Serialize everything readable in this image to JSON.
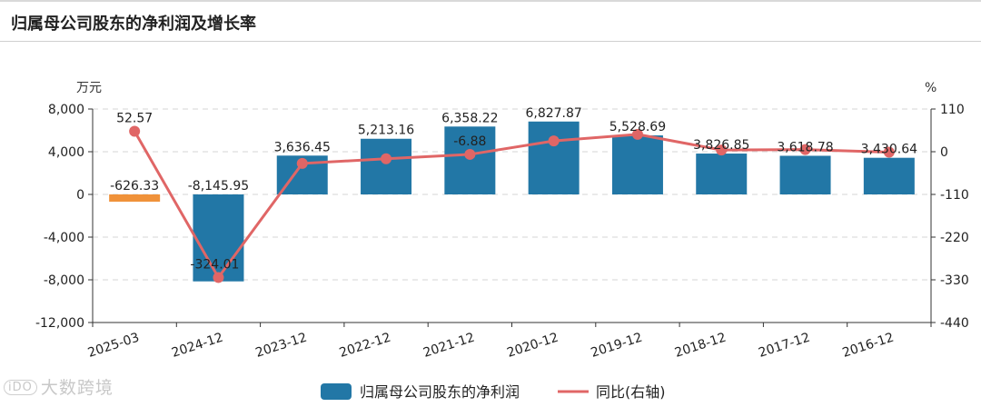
{
  "header": {
    "title": "归属母公司股东的净利润及增长率"
  },
  "watermark": {
    "text": "大数跨境",
    "logo": "iDO"
  },
  "chart_data": {
    "type": "bar",
    "categories": [
      "2025-03",
      "2024-12",
      "2023-12",
      "2022-12",
      "2021-12",
      "2020-12",
      "2019-12",
      "2018-12",
      "2017-12",
      "2016-12"
    ],
    "series": [
      {
        "name": "归属母公司股东的净利润",
        "type": "bar",
        "axis": "left",
        "values": [
          -626.33,
          -8145.95,
          3636.45,
          5213.16,
          6358.22,
          6827.87,
          5528.69,
          3826.85,
          3618.78,
          3430.64
        ],
        "labels": [
          "-626.33",
          "-8,145.95",
          "3,636.45",
          "5,213.16",
          "6,358.22",
          "6,827.87",
          "5,528.69",
          "3,826.85",
          "3,618.78",
          "3,430.64"
        ],
        "color": "#2277a6",
        "highlight_color": "#f0923a"
      },
      {
        "name": "同比(右轴)",
        "type": "line",
        "axis": "right",
        "values": [
          52.57,
          -324.01,
          -30.25,
          -18.01,
          -6.88,
          27.85,
          44.65,
          4.42,
          5.48,
          -1.2
        ],
        "labels": [
          "52.57",
          "-324.01",
          "",
          "",
          "-6.88",
          "",
          "",
          "",
          "",
          ""
        ],
        "color": "#e06666"
      }
    ],
    "left_axis": {
      "unit": "万元",
      "ylim": [
        -12000,
        8000
      ],
      "ticks": [
        8000,
        4000,
        0,
        -4000,
        -8000,
        -12000
      ],
      "tick_labels": [
        "8,000",
        "4,000",
        "0",
        "-4,000",
        "-8,000",
        "-12,000"
      ]
    },
    "right_axis": {
      "unit": "%",
      "ylim": [
        -440,
        110
      ],
      "ticks": [
        110,
        0,
        -110,
        -220,
        -330,
        -440
      ],
      "tick_labels": [
        "110",
        "0",
        "-110",
        "-220",
        "-330",
        "-440"
      ]
    },
    "grid": true,
    "legend": "bottom"
  }
}
